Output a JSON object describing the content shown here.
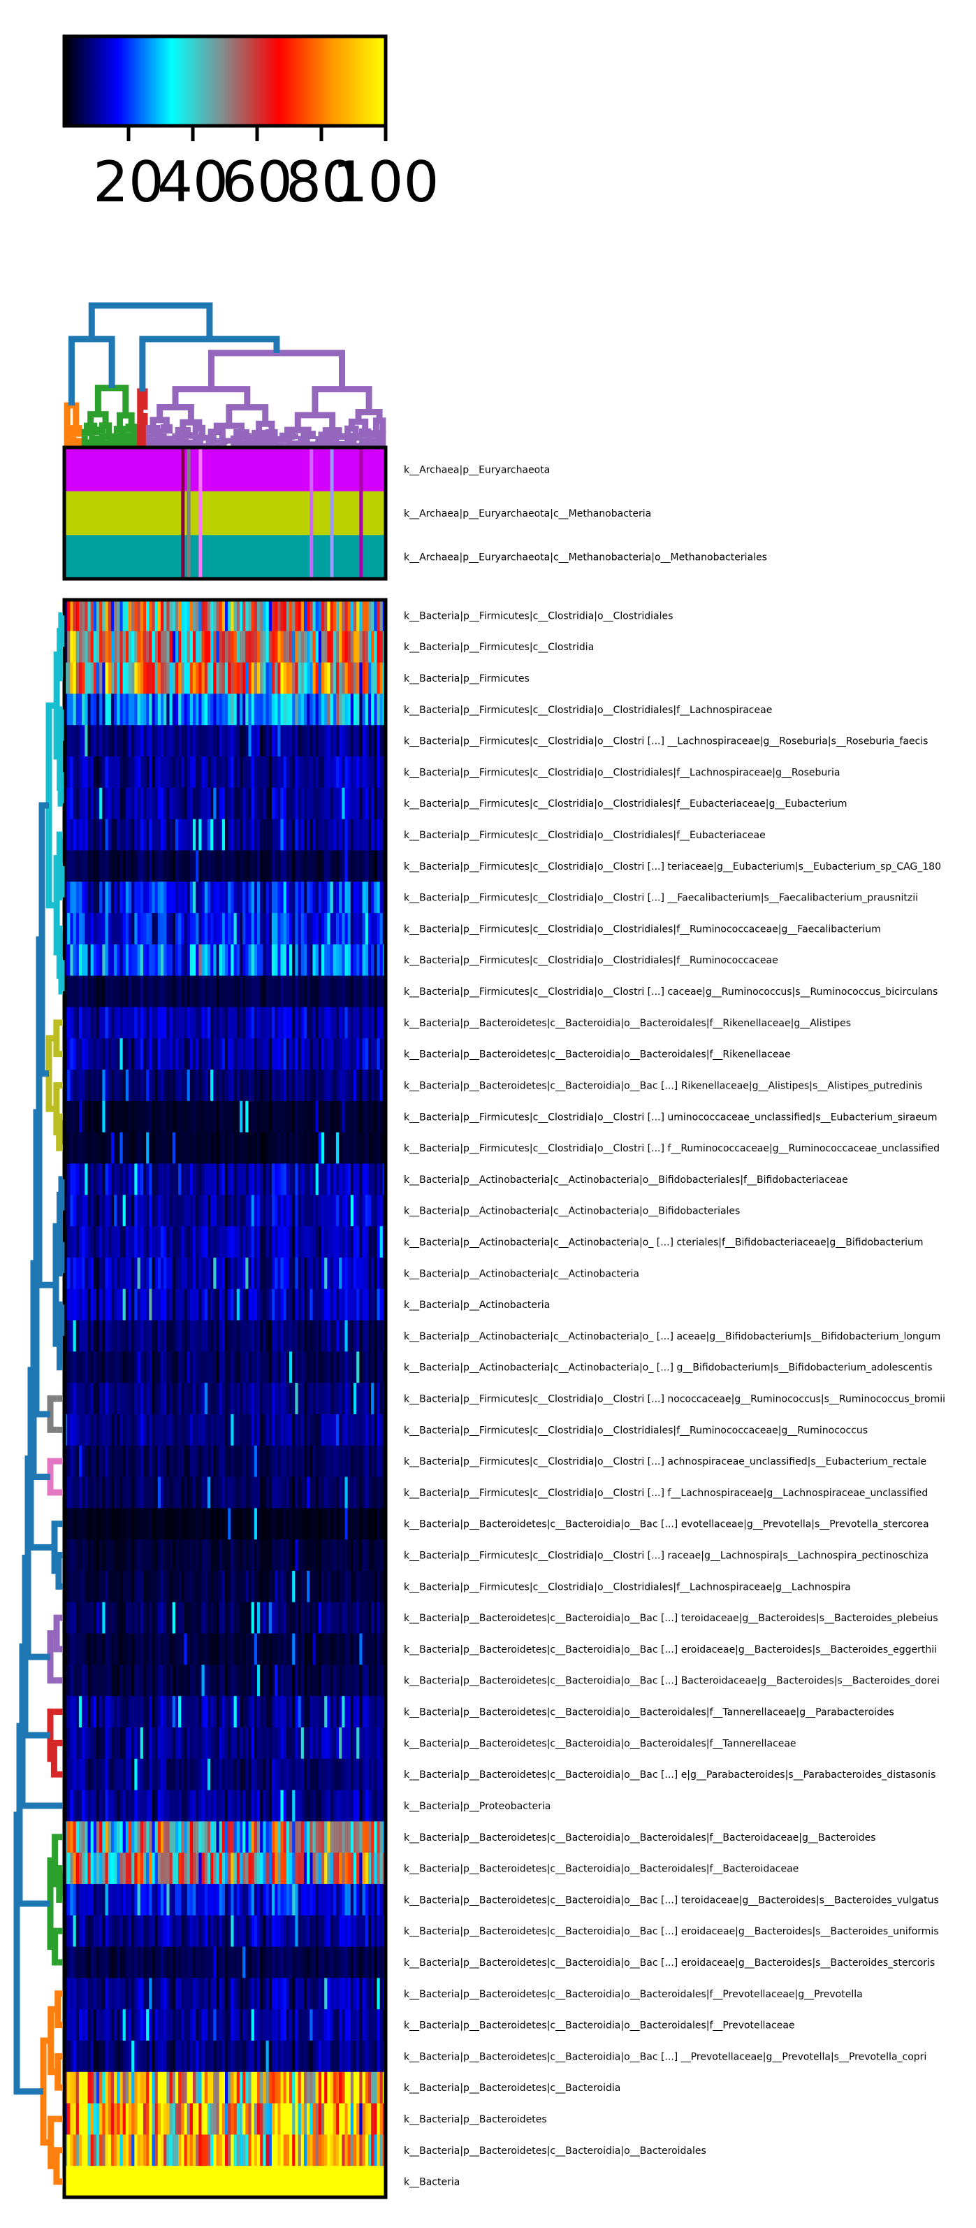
{
  "chart_data": {
    "type": "heatmap",
    "title": "",
    "xlabel": "",
    "ylabel": "",
    "n_samples": 110,
    "colorbar": {
      "stops": [
        "#000000",
        "#0000ff",
        "#00ffff",
        "#888888",
        "#ff0000",
        "#ff9900",
        "#ffff00"
      ],
      "ticks": [
        20,
        40,
        60,
        80,
        100
      ],
      "tick_labels": [
        "20",
        "40",
        "60",
        "80",
        "100"
      ],
      "range": [
        0,
        100
      ]
    },
    "colors": {
      "top_cluster": "#1f77b4",
      "cluster_orange": "#ff7f0e",
      "cluster_green": "#2ca02c",
      "cluster_red": "#d62728",
      "cluster_purple": "#9467bd",
      "cluster_cyan": "#17becf",
      "cluster_olive": "#bcbd22",
      "cluster_gray": "#7f7f7f",
      "cluster_pink": "#e377c2",
      "archaea_magenta": "#d400ff",
      "archaea_lime": "#bcd200",
      "archaea_teal": "#00a0a0"
    },
    "archaea_rows": [
      "k__Archaea|p__Euryarchaeota",
      "k__Archaea|p__Euryarchaeota|c__Methanobacteria",
      "k__Archaea|p__Euryarchaeota|c__Methanobacteria|o__Methanobacteriales"
    ],
    "rows": [
      {
        "label": "k__Bacteria|p__Firmicutes|c__Clostridia|o__Clostridiales",
        "level": 55
      },
      {
        "label": "k__Bacteria|p__Firmicutes|c__Clostridia",
        "level": 55
      },
      {
        "label": "k__Bacteria|p__Firmicutes",
        "level": 58
      },
      {
        "label": "k__Bacteria|p__Firmicutes|c__Clostridia|o__Clostridiales|f__Lachnospiraceae",
        "level": 25
      },
      {
        "label": "k__Bacteria|p__Firmicutes|c__Clostridia|o__Clostri [...] __Lachnospiraceae|g__Roseburia|s__Roseburia_faecis",
        "level": 9
      },
      {
        "label": "k__Bacteria|p__Firmicutes|c__Clostridia|o__Clostridiales|f__Lachnospiraceae|g__Roseburia",
        "level": 10
      },
      {
        "label": "k__Bacteria|p__Firmicutes|c__Clostridia|o__Clostridiales|f__Eubacteriaceae|g__Eubacterium",
        "level": 10
      },
      {
        "label": "k__Bacteria|p__Firmicutes|c__Clostridia|o__Clostridiales|f__Eubacteriaceae",
        "level": 10
      },
      {
        "label": "k__Bacteria|p__Firmicutes|c__Clostridia|o__Clostri [...] teriaceae|g__Eubacterium|s__Eubacterium_sp_CAG_180",
        "level": 5
      },
      {
        "label": "k__Bacteria|p__Firmicutes|c__Clostridia|o__Clostri [...] __Faecalibacterium|s__Faecalibacterium_prausnitzii",
        "level": 17
      },
      {
        "label": "k__Bacteria|p__Firmicutes|c__Clostridia|o__Clostridiales|f__Ruminococcaceae|g__Faecalibacterium",
        "level": 17
      },
      {
        "label": "k__Bacteria|p__Firmicutes|c__Clostridia|o__Clostridiales|f__Ruminococcaceae",
        "level": 22
      },
      {
        "label": "k__Bacteria|p__Firmicutes|c__Clostridia|o__Clostri [...] caceae|g__Ruminococcus|s__Ruminococcus_bicirculans",
        "level": 5
      },
      {
        "label": "k__Bacteria|p__Bacteroidetes|c__Bacteroidia|o__Bacteroidales|f__Rikenellaceae|g__Alistipes",
        "level": 11
      },
      {
        "label": "k__Bacteria|p__Bacteroidetes|c__Bacteroidia|o__Bacteroidales|f__Rikenellaceae",
        "level": 11
      },
      {
        "label": "k__Bacteria|p__Bacteroidetes|c__Bacteroidia|o__Bac [...] Rikenellaceae|g__Alistipes|s__Alistipes_putredinis",
        "level": 7
      },
      {
        "label": "k__Bacteria|p__Firmicutes|c__Clostridia|o__Clostri [...] uminococcaceae_unclassified|s__Eubacterium_siraeum",
        "level": 3
      },
      {
        "label": "k__Bacteria|p__Firmicutes|c__Clostridia|o__Clostri [...] f__Ruminococcaceae|g__Ruminococcaceae_unclassified",
        "level": 3
      },
      {
        "label": "k__Bacteria|p__Actinobacteria|c__Actinobacteria|o__Bifidobacteriales|f__Bifidobacteriaceae",
        "level": 11
      },
      {
        "label": "k__Bacteria|p__Actinobacteria|c__Actinobacteria|o__Bifidobacteriales",
        "level": 11
      },
      {
        "label": "k__Bacteria|p__Actinobacteria|c__Actinobacteria|o_ [...] cteriales|f__Bifidobacteriaceae|g__Bifidobacterium",
        "level": 11
      },
      {
        "label": "k__Bacteria|p__Actinobacteria|c__Actinobacteria",
        "level": 12
      },
      {
        "label": "k__Bacteria|p__Actinobacteria",
        "level": 12
      },
      {
        "label": "k__Bacteria|p__Actinobacteria|c__Actinobacteria|o_ [...] aceae|g__Bifidobacterium|s__Bifidobacterium_longum",
        "level": 7
      },
      {
        "label": "k__Bacteria|p__Actinobacteria|c__Actinobacteria|o_ [...] g__Bifidobacterium|s__Bifidobacterium_adolescentis",
        "level": 6
      },
      {
        "label": "k__Bacteria|p__Firmicutes|c__Clostridia|o__Clostri [...] nococcaceae|g__Ruminococcus|s__Ruminococcus_bromii",
        "level": 8
      },
      {
        "label": "k__Bacteria|p__Firmicutes|c__Clostridia|o__Clostridiales|f__Ruminococcaceae|g__Ruminococcus",
        "level": 9
      },
      {
        "label": "k__Bacteria|p__Firmicutes|c__Clostridia|o__Clostri [...] achnospiraceae_unclassified|s__Eubacterium_rectale",
        "level": 6
      },
      {
        "label": "k__Bacteria|p__Firmicutes|c__Clostridia|o__Clostri [...] f__Lachnospiraceae|g__Lachnospiraceae_unclassified",
        "level": 6
      },
      {
        "label": "k__Bacteria|p__Bacteroidetes|c__Bacteroidia|o__Bac [...] evotellaceae|g__Prevotella|s__Prevotella_stercorea",
        "level": 2
      },
      {
        "label": "k__Bacteria|p__Firmicutes|c__Clostridia|o__Clostri [...] raceae|g__Lachnospira|s__Lachnospira_pectinoschiza",
        "level": 4
      },
      {
        "label": "k__Bacteria|p__Firmicutes|c__Clostridia|o__Clostridiales|f__Lachnospiraceae|g__Lachnospira",
        "level": 4
      },
      {
        "label": "k__Bacteria|p__Bacteroidetes|c__Bacteroidia|o__Bac [...] teroidaceae|g__Bacteroides|s__Bacteroides_plebeius",
        "level": 6
      },
      {
        "label": "k__Bacteria|p__Bacteroidetes|c__Bacteroidia|o__Bac [...] eroidaceae|g__Bacteroides|s__Bacteroides_eggerthii",
        "level": 4
      },
      {
        "label": "k__Bacteria|p__Bacteroidetes|c__Bacteroidia|o__Bac [...] Bacteroidaceae|g__Bacteroides|s__Bacteroides_dorei",
        "level": 5
      },
      {
        "label": "k__Bacteria|p__Bacteroidetes|c__Bacteroidia|o__Bacteroidales|f__Tannerellaceae|g__Parabacteroides",
        "level": 9
      },
      {
        "label": "k__Bacteria|p__Bacteroidetes|c__Bacteroidia|o__Bacteroidales|f__Tannerellaceae",
        "level": 9
      },
      {
        "label": "k__Bacteria|p__Bacteroidetes|c__Bacteroidia|o__Bac [...] e|g__Parabacteroides|s__Parabacteroides_distasonis",
        "level": 8
      },
      {
        "label": "k__Bacteria|p__Proteobacteria",
        "level": 10
      },
      {
        "label": "k__Bacteria|p__Bacteroidetes|c__Bacteroidia|o__Bacteroidales|f__Bacteroidaceae|g__Bacteroides",
        "level": 50
      },
      {
        "label": "k__Bacteria|p__Bacteroidetes|c__Bacteroidia|o__Bacteroidales|f__Bacteroidaceae",
        "level": 50
      },
      {
        "label": "k__Bacteria|p__Bacteroidetes|c__Bacteroidia|o__Bac [...] teroidaceae|g__Bacteroides|s__Bacteroides_vulgatus",
        "level": 16
      },
      {
        "label": "k__Bacteria|p__Bacteroidetes|c__Bacteroidia|o__Bac [...] eroidaceae|g__Bacteroides|s__Bacteroides_uniformis",
        "level": 10
      },
      {
        "label": "k__Bacteria|p__Bacteroidetes|c__Bacteroidia|o__Bac [...] eroidaceae|g__Bacteroides|s__Bacteroides_stercoris",
        "level": 5
      },
      {
        "label": "k__Bacteria|p__Bacteroidetes|c__Bacteroidia|o__Bacteroidales|f__Prevotellaceae|g__Prevotella",
        "level": 10
      },
      {
        "label": "k__Bacteria|p__Bacteroidetes|c__Bacteroidia|o__Bacteroidales|f__Prevotellaceae",
        "level": 10
      },
      {
        "label": "k__Bacteria|p__Bacteroidetes|c__Bacteroidia|o__Bac [...] __Prevotellaceae|g__Prevotella|s__Prevotella_copri",
        "level": 8
      },
      {
        "label": "k__Bacteria|p__Bacteroidetes|c__Bacteroidia",
        "level": 78
      },
      {
        "label": "k__Bacteria|p__Bacteroidetes",
        "level": 78
      },
      {
        "label": "k__Bacteria|p__Bacteroidetes|c__Bacteroidia|o__Bacteroidales",
        "level": 78
      },
      {
        "label": "k__Bacteria",
        "level": 100
      }
    ]
  }
}
